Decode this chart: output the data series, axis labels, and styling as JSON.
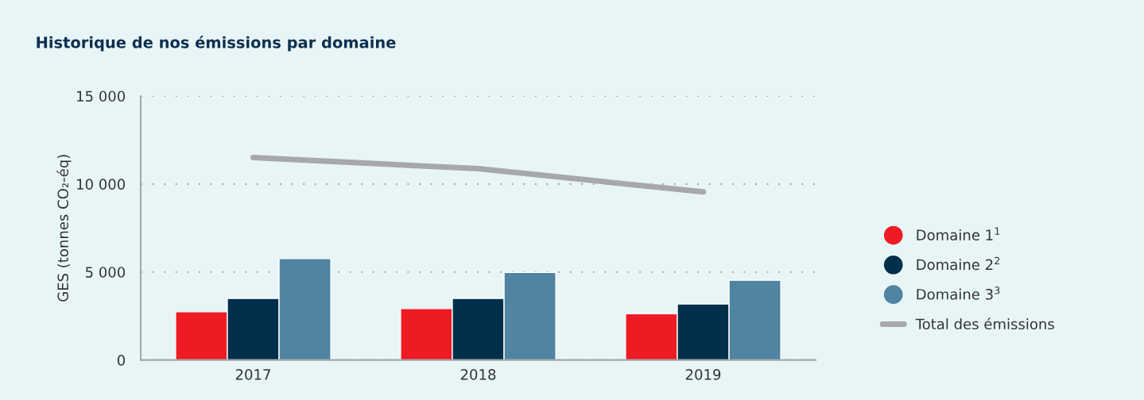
{
  "chart_data": {
    "type": "bar",
    "title": "Historique de nos émissions par domaine",
    "ylabel": "GES (tonnes CO₂-éq)",
    "categories": [
      "2017",
      "2018",
      "2019"
    ],
    "series": [
      {
        "name": "Domaine 1$^{1}$",
        "color": "#ed1c24",
        "values": [
          2740,
          2920,
          2630
        ]
      },
      {
        "name": "Domaine 2$^{2}$",
        "color": "#002f4b",
        "values": [
          3500,
          3500,
          3180
        ]
      },
      {
        "name": "Domaine 3$^{3}$",
        "color": "#5084a2",
        "values": [
          5760,
          4970,
          4530
        ]
      },
      {
        "name": "Total des émissions",
        "type": "line",
        "color": "#a7a8ab",
        "values": [
          11500,
          10870,
          9550
        ]
      }
    ],
    "ylim": [
      0,
      15000
    ],
    "yticks": [
      {
        "value": 0,
        "label": "0"
      },
      {
        "value": 5000,
        "label": "5 000"
      },
      {
        "value": 10000,
        "label": "10 000"
      },
      {
        "value": 15000,
        "label": "15 000"
      }
    ],
    "grid": "y",
    "legend": "right"
  }
}
